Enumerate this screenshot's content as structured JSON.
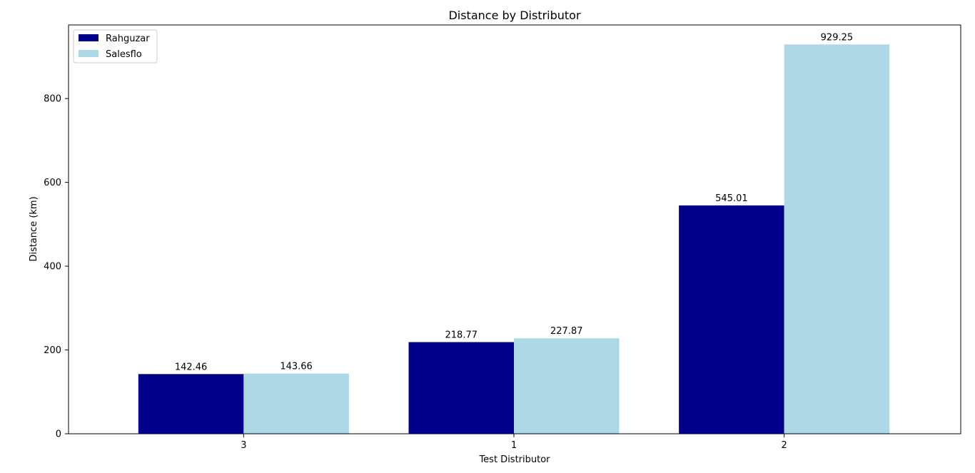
{
  "chart_data": {
    "type": "bar",
    "title": "Distance by Distributor",
    "xlabel": "Test Distributor",
    "ylabel": "Distance (km)",
    "categories": [
      "3",
      "1",
      "2"
    ],
    "series": [
      {
        "name": "Rahguzar",
        "color": "#00008b",
        "values": [
          142.46,
          218.77,
          545.01
        ],
        "labels": [
          "142.46",
          "218.77",
          "545.01"
        ]
      },
      {
        "name": "Salesflo",
        "color": "#add8e6",
        "values": [
          143.66,
          227.87,
          929.25
        ],
        "labels": [
          "143.66",
          "227.87",
          "929.25"
        ]
      }
    ],
    "ylim": [
      0,
      975.71
    ],
    "yticks": [
      0,
      200,
      400,
      600,
      800
    ],
    "ytick_labels": [
      "0",
      "200",
      "400",
      "600",
      "800"
    ],
    "grid": false,
    "legend_position": "top-left"
  }
}
